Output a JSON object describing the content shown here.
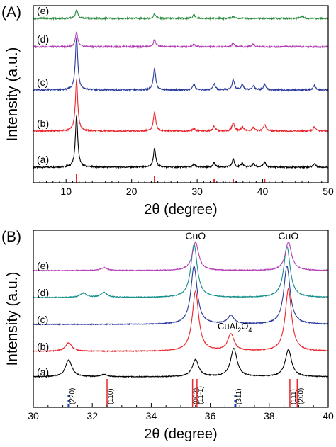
{
  "chart_data": [
    {
      "type": "line",
      "panel_label": "(A)",
      "xlabel": "2θ (degree)",
      "ylabel": "Intensity (a.u.)",
      "xlim": [
        5,
        50
      ],
      "x_ticks": [
        10,
        20,
        30,
        40,
        50
      ],
      "x_tick_labels": [
        "10",
        "20",
        "30",
        "40",
        "50"
      ],
      "grid": false,
      "series": [
        {
          "name": "(a)",
          "color": "#000000",
          "peaks": [
            {
              "x": 11.6,
              "h": 72
            },
            {
              "x": 23.5,
              "h": 26
            },
            {
              "x": 29.5,
              "h": 4
            },
            {
              "x": 32.6,
              "h": 6
            },
            {
              "x": 35.5,
              "h": 11
            },
            {
              "x": 36.9,
              "h": 5
            },
            {
              "x": 38.6,
              "h": 5
            },
            {
              "x": 40.3,
              "h": 7
            },
            {
              "x": 47.9,
              "h": 5
            }
          ]
        },
        {
          "name": "(b)",
          "color": "#e8262b",
          "peaks": [
            {
              "x": 11.6,
              "h": 72
            },
            {
              "x": 23.5,
              "h": 26
            },
            {
              "x": 29.5,
              "h": 4
            },
            {
              "x": 32.6,
              "h": 7
            },
            {
              "x": 35.5,
              "h": 12
            },
            {
              "x": 36.9,
              "h": 6
            },
            {
              "x": 38.6,
              "h": 5
            },
            {
              "x": 40.3,
              "h": 9
            },
            {
              "x": 47.9,
              "h": 6
            }
          ]
        },
        {
          "name": "(c)",
          "color": "#2b3a9b",
          "peaks": [
            {
              "x": 11.6,
              "h": 75
            },
            {
              "x": 23.5,
              "h": 30
            },
            {
              "x": 29.5,
              "h": 8
            },
            {
              "x": 32.6,
              "h": 9
            },
            {
              "x": 35.5,
              "h": 14
            },
            {
              "x": 36.9,
              "h": 7
            },
            {
              "x": 38.6,
              "h": 6
            },
            {
              "x": 40.3,
              "h": 8
            },
            {
              "x": 47.9,
              "h": 6
            }
          ]
        },
        {
          "name": "(d)",
          "color": "#b33fb5",
          "peaks": [
            {
              "x": 11.6,
              "h": 20
            },
            {
              "x": 23.5,
              "h": 10
            },
            {
              "x": 29.5,
              "h": 4
            },
            {
              "x": 35.5,
              "h": 5
            },
            {
              "x": 38.6,
              "h": 4
            }
          ]
        },
        {
          "name": "(e)",
          "color": "#2a8c3c",
          "peaks": [
            {
              "x": 11.6,
              "h": 12
            },
            {
              "x": 23.5,
              "h": 6
            },
            {
              "x": 29.5,
              "h": 5
            },
            {
              "x": 35.5,
              "h": 3
            },
            {
              "x": 46.0,
              "h": 3
            }
          ]
        }
      ],
      "reference_lines": {
        "color": "#e8262b",
        "positions": [
          11.6,
          23.5,
          32.6,
          35.5,
          40.3
        ]
      }
    },
    {
      "type": "line",
      "panel_label": "(B)",
      "xlabel": "2θ (degree)",
      "ylabel": "Intensity (a.u.)",
      "xlim": [
        30,
        40
      ],
      "x_ticks": [
        30,
        32,
        34,
        36,
        38,
        40
      ],
      "x_tick_labels": [
        "30",
        "32",
        "34",
        "36",
        "38",
        "40"
      ],
      "grid": false,
      "series": [
        {
          "name": "(a)",
          "color": "#000000",
          "peaks": [
            {
              "x": 31.2,
              "h": 24
            },
            {
              "x": 32.4,
              "h": 3
            },
            {
              "x": 35.5,
              "h": 24
            },
            {
              "x": 36.8,
              "h": 40
            },
            {
              "x": 38.65,
              "h": 38
            }
          ]
        },
        {
          "name": "(b)",
          "color": "#e8262b",
          "peaks": [
            {
              "x": 31.2,
              "h": 12
            },
            {
              "x": 35.5,
              "h": 85
            },
            {
              "x": 36.7,
              "h": 24
            },
            {
              "x": 38.65,
              "h": 88
            }
          ]
        },
        {
          "name": "(c)",
          "color": "#2b3a9b",
          "peaks": [
            {
              "x": 35.45,
              "h": 82
            },
            {
              "x": 36.7,
              "h": 12
            },
            {
              "x": 38.6,
              "h": 82
            }
          ]
        },
        {
          "name": "(d)",
          "color": "#138f8b",
          "peaks": [
            {
              "x": 31.7,
              "h": 6
            },
            {
              "x": 32.4,
              "h": 7
            },
            {
              "x": 35.45,
              "h": 75
            },
            {
              "x": 38.6,
              "h": 72
            }
          ]
        },
        {
          "name": "(e)",
          "color": "#b33fb5",
          "peaks": [
            {
              "x": 32.4,
              "h": 4
            },
            {
              "x": 35.5,
              "h": 40
            },
            {
              "x": 38.65,
              "h": 40
            }
          ]
        }
      ],
      "annotations": [
        {
          "text": "CuO",
          "x": 35.5
        },
        {
          "text": "CuO",
          "x": 38.65
        },
        {
          "text": "CuAl",
          "sub": "2",
          "text2": "O",
          "sub2": "4",
          "x": 36.7
        }
      ],
      "reference_marks": [
        {
          "x": 31.2,
          "label": "(220)",
          "color": "#1f3fa8",
          "style": "dashed"
        },
        {
          "x": 32.5,
          "label": "(110)",
          "color": "#e8262b",
          "style": "solid"
        },
        {
          "x": 35.4,
          "label": "(002)",
          "color": "#e8262b",
          "style": "solid"
        },
        {
          "x": 35.55,
          "label": "(11-1)",
          "color": "#e8262b",
          "style": "solid"
        },
        {
          "x": 36.85,
          "label": "(311)",
          "color": "#1f3fa8",
          "style": "dashed"
        },
        {
          "x": 38.7,
          "label": "(111)",
          "color": "#e8262b",
          "style": "solid"
        },
        {
          "x": 38.95,
          "label": "(200)",
          "color": "#e8262b",
          "style": "solid"
        }
      ]
    }
  ]
}
